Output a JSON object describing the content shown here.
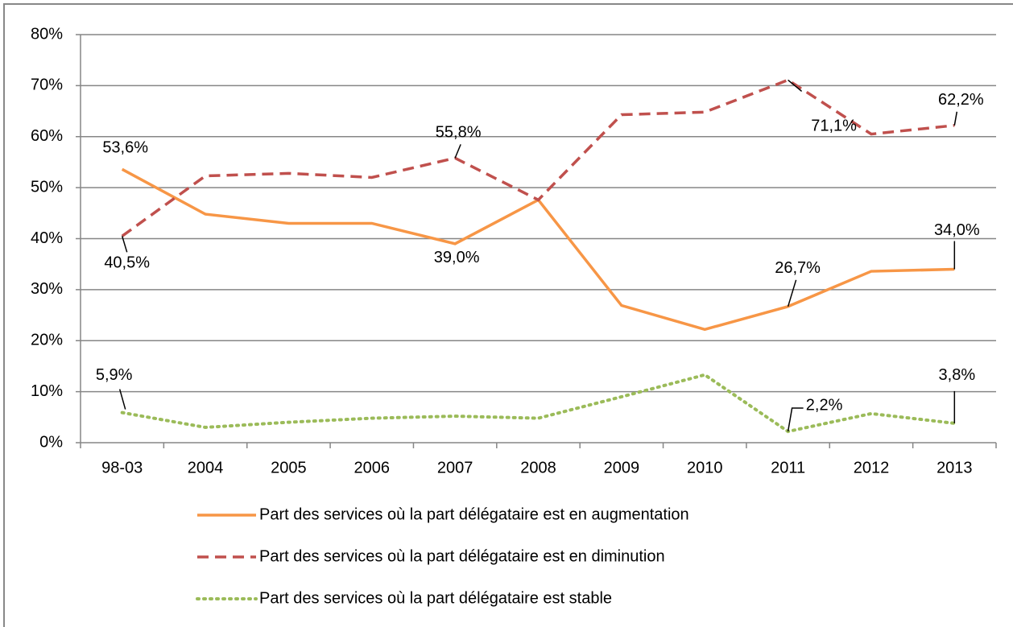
{
  "chart_data": {
    "type": "line",
    "categories": [
      "98-03",
      "2004",
      "2005",
      "2006",
      "2007",
      "2008",
      "2009",
      "2010",
      "2011",
      "2012",
      "2013"
    ],
    "series": [
      {
        "name": "Part des services où la part délégataire est en augmentation",
        "color": "#f79646",
        "dash": "solid",
        "values": [
          53.6,
          44.8,
          43.0,
          43.0,
          39.0,
          47.6,
          26.9,
          22.2,
          26.7,
          33.6,
          34.0
        ],
        "value_labels": [
          "53,6%",
          null,
          null,
          null,
          "39,0%",
          null,
          null,
          null,
          "26,7%",
          null,
          "34,0%"
        ]
      },
      {
        "name": "Part des services où la part délégataire est en diminution",
        "color": "#c0504d",
        "dash": "dashed",
        "values": [
          40.5,
          52.3,
          52.8,
          52.0,
          55.8,
          47.6,
          64.3,
          64.8,
          71.1,
          60.5,
          62.2
        ],
        "value_labels": [
          "40,5%",
          null,
          null,
          null,
          "55,8%",
          null,
          null,
          null,
          "71,1%",
          null,
          "62,2%"
        ]
      },
      {
        "name": "Part des services où la part délégataire est stable",
        "color": "#9bbb59",
        "dash": "dotted",
        "values": [
          5.9,
          3.0,
          4.0,
          4.8,
          5.2,
          4.8,
          9.0,
          13.3,
          2.2,
          5.7,
          3.8
        ],
        "value_labels": [
          "5,9%",
          null,
          null,
          null,
          null,
          null,
          null,
          null,
          "2,2%",
          null,
          "3,8%"
        ]
      }
    ],
    "ylim": [
      0,
      80
    ],
    "yticks": [
      {
        "value": 0,
        "label": "0%"
      },
      {
        "value": 10,
        "label": "10%"
      },
      {
        "value": 20,
        "label": "20%"
      },
      {
        "value": 30,
        "label": "30%"
      },
      {
        "value": 40,
        "label": "40%"
      },
      {
        "value": 50,
        "label": "50%"
      },
      {
        "value": 60,
        "label": "60%"
      },
      {
        "value": 70,
        "label": "70%"
      },
      {
        "value": 80,
        "label": "80%"
      }
    ],
    "grid": true,
    "legend": "bottom"
  }
}
